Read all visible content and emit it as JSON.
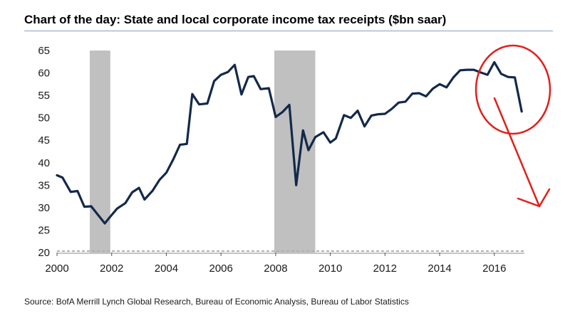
{
  "colors": {
    "line": "#13294b",
    "recession": "#c0c0c0",
    "annotation": "#e0201b",
    "baseline_dash": "#b0b0b0"
  },
  "chart_data": {
    "type": "line",
    "title": "Chart of the day: State and local corporate income tax receipts ($bn saar)",
    "xlabel": "",
    "ylabel": "",
    "xlim": [
      2000,
      2017.1
    ],
    "ylim": [
      20,
      65
    ],
    "y_ticks": [
      "20",
      "25",
      "30",
      "35",
      "40",
      "45",
      "50",
      "55",
      "60",
      "65"
    ],
    "x_ticks": [
      "2000",
      "2002",
      "2004",
      "2006",
      "2008",
      "2010",
      "2012",
      "2014",
      "2016"
    ],
    "recession_bands": [
      {
        "start": 2001.2,
        "end": 2001.95
      },
      {
        "start": 2007.95,
        "end": 2009.45
      }
    ],
    "series": [
      {
        "name": "State and local corporate income tax receipts",
        "x": [
          2000.0,
          2000.2,
          2000.5,
          2000.75,
          2001.0,
          2001.25,
          2001.5,
          2001.75,
          2001.95,
          2002.2,
          2002.5,
          2002.75,
          2003.0,
          2003.2,
          2003.5,
          2003.75,
          2004.0,
          2004.25,
          2004.5,
          2004.75,
          2004.95,
          2005.2,
          2005.5,
          2005.75,
          2006.0,
          2006.25,
          2006.5,
          2006.75,
          2007.0,
          2007.2,
          2007.45,
          2007.75,
          2008.0,
          2008.25,
          2008.5,
          2008.75,
          2009.0,
          2009.2,
          2009.45,
          2009.75,
          2010.0,
          2010.2,
          2010.5,
          2010.75,
          2011.0,
          2011.25,
          2011.5,
          2011.75,
          2012.0,
          2012.25,
          2012.5,
          2012.75,
          2013.0,
          2013.25,
          2013.5,
          2013.75,
          2014.0,
          2014.25,
          2014.5,
          2014.75,
          2015.0,
          2015.25,
          2015.5,
          2015.75,
          2016.0,
          2016.25,
          2016.5,
          2016.75,
          2017.0
        ],
        "values": [
          37.2,
          36.7,
          33.5,
          33.7,
          30.2,
          30.3,
          28.4,
          26.5,
          28.0,
          29.8,
          31.0,
          33.4,
          34.4,
          31.8,
          33.8,
          36.2,
          37.8,
          40.7,
          44.0,
          44.2,
          55.3,
          53.0,
          53.2,
          58.2,
          59.6,
          60.2,
          61.8,
          55.2,
          59.1,
          59.3,
          56.4,
          56.6,
          50.2,
          51.3,
          52.9,
          35.0,
          47.2,
          42.8,
          45.7,
          46.8,
          44.5,
          45.4,
          50.6,
          50.0,
          51.6,
          48.1,
          50.5,
          50.8,
          50.9,
          52.0,
          53.4,
          53.6,
          55.4,
          55.5,
          54.8,
          56.5,
          57.5,
          56.8,
          59.0,
          60.6,
          60.7,
          60.7,
          60.1,
          59.6,
          62.4,
          59.8,
          59.1,
          59.0,
          51.4
        ]
      }
    ],
    "annotations": [
      "red circle around 2015-2017 peak",
      "red downward arrow"
    ]
  },
  "source_text": "Source: BofA Merrill Lynch Global Research, Bureau of Economic Analysis, Bureau of Labor Statistics"
}
